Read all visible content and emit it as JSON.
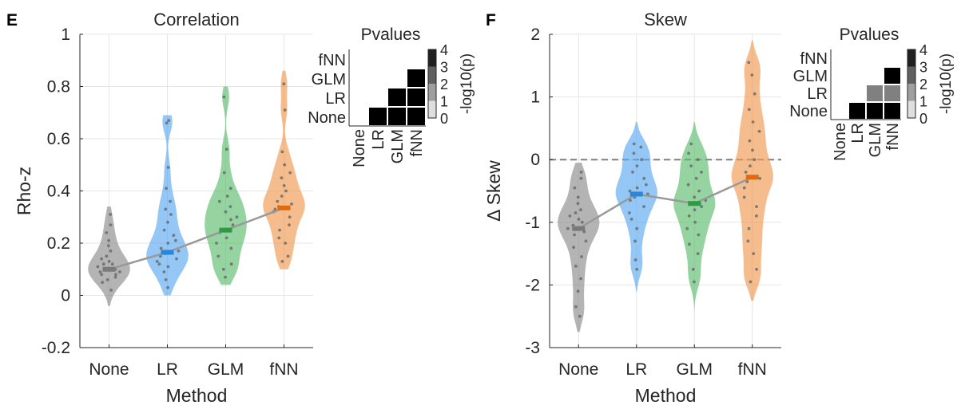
{
  "chart_data": [
    {
      "panel_label": "E",
      "type": "violin",
      "title": "Correlation",
      "xlabel": "Method",
      "ylabel": "Rho-z",
      "ylim": [
        -0.2,
        1
      ],
      "yticks": [
        "-0.2",
        "0",
        "0.2",
        "0.4",
        "0.6",
        "0.8",
        "1"
      ],
      "ytick_values": [
        -0.2,
        0,
        0.2,
        0.4,
        0.6,
        0.8,
        1
      ],
      "grid": true,
      "categories": [
        "None",
        "LR",
        "GLM",
        "fNN"
      ],
      "colors": [
        "#8c8c8c",
        "#5aa9f0",
        "#5cbb6e",
        "#ef9a52"
      ],
      "median_colors": [
        "#7a7a7a",
        "#2b86d8",
        "#2e9a44",
        "#e06a10"
      ],
      "medians": [
        0.1,
        0.165,
        0.25,
        0.335
      ],
      "ranges": [
        [
          -0.04,
          0.34
        ],
        [
          0.0,
          0.69
        ],
        [
          0.04,
          0.8
        ],
        [
          0.1,
          0.86
        ]
      ],
      "points": [
        [
          0.02,
          0.05,
          0.06,
          0.07,
          0.08,
          0.08,
          0.09,
          0.09,
          0.1,
          0.1,
          0.11,
          0.12,
          0.12,
          0.13,
          0.14,
          0.15,
          0.17,
          0.19,
          0.21,
          0.24,
          0.27,
          0.31
        ],
        [
          0.03,
          0.06,
          0.09,
          0.11,
          0.12,
          0.13,
          0.14,
          0.15,
          0.16,
          0.17,
          0.18,
          0.2,
          0.21,
          0.23,
          0.25,
          0.28,
          0.31,
          0.33,
          0.36,
          0.41,
          0.49,
          0.66,
          0.67
        ],
        [
          0.07,
          0.1,
          0.12,
          0.15,
          0.18,
          0.2,
          0.22,
          0.24,
          0.25,
          0.27,
          0.29,
          0.3,
          0.32,
          0.34,
          0.36,
          0.38,
          0.41,
          0.47,
          0.56,
          0.76
        ],
        [
          0.13,
          0.15,
          0.2,
          0.22,
          0.25,
          0.27,
          0.3,
          0.32,
          0.33,
          0.34,
          0.35,
          0.36,
          0.38,
          0.4,
          0.42,
          0.45,
          0.47,
          0.5,
          0.55,
          0.71,
          0.81
        ]
      ],
      "pvalue_matrix": {
        "title": "Pvalues",
        "row_labels": [
          "fNN",
          "GLM",
          "LR",
          "None"
        ],
        "col_labels": [
          "None",
          "LR",
          "GLM",
          "fNN"
        ],
        "values": [
          [
            null,
            null,
            null,
            null
          ],
          [
            null,
            null,
            null,
            4
          ],
          [
            null,
            null,
            4,
            4
          ],
          [
            null,
            4,
            4,
            4
          ]
        ],
        "colorbar_label": "-log10(p)",
        "colorbar_ticks": [
          "0",
          "1",
          "2",
          "3",
          "4"
        ]
      }
    },
    {
      "panel_label": "F",
      "type": "violin",
      "title": "Skew",
      "xlabel": "Method",
      "ylabel": "Δ Skew",
      "ylim": [
        -3,
        2
      ],
      "yticks": [
        "-3",
        "-2",
        "-1",
        "0",
        "1",
        "2"
      ],
      "ytick_values": [
        -3,
        -2,
        -1,
        0,
        1,
        2
      ],
      "grid": true,
      "reference_line": 0,
      "categories": [
        "None",
        "LR",
        "GLM",
        "fNN"
      ],
      "colors": [
        "#8c8c8c",
        "#5aa9f0",
        "#5cbb6e",
        "#ef9a52"
      ],
      "median_colors": [
        "#7a7a7a",
        "#2b86d8",
        "#2e9a44",
        "#e06a10"
      ],
      "medians": [
        -1.1,
        -0.55,
        -0.7,
        -0.28
      ],
      "ranges": [
        [
          -2.75,
          -0.05
        ],
        [
          -2.1,
          0.6
        ],
        [
          -2.45,
          0.6
        ],
        [
          -2.25,
          1.9
        ]
      ],
      "points": [
        [
          -2.5,
          -2.35,
          -2.1,
          -1.9,
          -1.7,
          -1.55,
          -1.4,
          -1.3,
          -1.2,
          -1.15,
          -1.1,
          -1.05,
          -1.0,
          -0.95,
          -0.9,
          -0.85,
          -0.8,
          -0.7,
          -0.6,
          -0.45,
          -0.3,
          -0.2
        ],
        [
          -1.75,
          -1.6,
          -1.3,
          -1.1,
          -0.95,
          -0.85,
          -0.75,
          -0.65,
          -0.6,
          -0.55,
          -0.5,
          -0.45,
          -0.4,
          -0.3,
          -0.2,
          -0.1,
          0.0,
          0.1,
          0.2,
          0.25
        ],
        [
          -1.95,
          -1.75,
          -1.5,
          -1.35,
          -1.2,
          -1.1,
          -1.0,
          -0.9,
          -0.8,
          -0.75,
          -0.7,
          -0.65,
          -0.6,
          -0.5,
          -0.4,
          -0.3,
          -0.2,
          -0.1,
          0.0,
          0.1,
          0.25
        ],
        [
          -1.95,
          -1.75,
          -1.5,
          -1.3,
          -1.1,
          -0.9,
          -0.75,
          -0.6,
          -0.45,
          -0.35,
          -0.3,
          -0.2,
          -0.1,
          0.0,
          0.15,
          0.3,
          0.45,
          0.6,
          0.8,
          1.05,
          1.35,
          1.55
        ]
      ],
      "pvalue_matrix": {
        "title": "Pvalues",
        "row_labels": [
          "fNN",
          "GLM",
          "LR",
          "None"
        ],
        "col_labels": [
          "None",
          "LR",
          "GLM",
          "fNN"
        ],
        "values": [
          [
            null,
            null,
            null,
            null
          ],
          [
            null,
            null,
            null,
            4
          ],
          [
            null,
            null,
            2,
            2
          ],
          [
            null,
            4,
            4,
            4
          ]
        ],
        "colorbar_label": "-log10(p)",
        "colorbar_ticks": [
          "0",
          "1",
          "2",
          "3",
          "4"
        ]
      }
    }
  ]
}
